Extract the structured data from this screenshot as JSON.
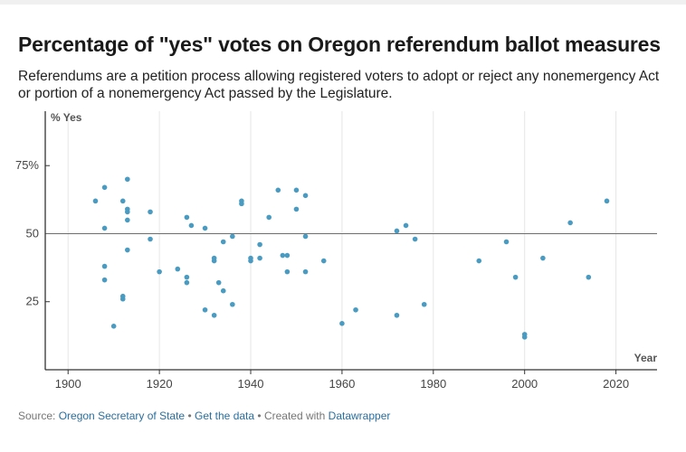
{
  "header": {
    "title": "Percentage of \"yes\" votes on Oregon referendum ballot measures",
    "subtitle": "Referendums are a petition process allowing registered voters to adopt or reject any nonemergency Act or portion of a nonemergency Act passed by the Legislature."
  },
  "footer": {
    "source_label": "Source:",
    "source_link": "Oregon Secretary of State",
    "sep1": "•",
    "data_link": "Get the data",
    "sep2": "•",
    "created_label": "Created with",
    "created_link": "Datawrapper"
  },
  "colors": {
    "dot": "#4a9bc1",
    "grid": "#e6e6e6",
    "axis": "#333333",
    "refline": "#6e6e6e"
  },
  "chart_data": {
    "type": "scatter",
    "title": "Percentage of \"yes\" votes on Oregon referendum ballot measures",
    "ylabel": "% Yes",
    "xlabel": "Year",
    "xlim": [
      1895,
      2029
    ],
    "ylim": [
      0,
      95
    ],
    "x_ticks": [
      1900,
      1920,
      1940,
      1960,
      1980,
      2000,
      2020
    ],
    "y_ticks": [
      25,
      50,
      75
    ],
    "y_tick_labels": [
      "25",
      "50",
      "75%"
    ],
    "reference_line": 50,
    "grid": "vertical",
    "points": [
      {
        "x": 1906,
        "y": 62
      },
      {
        "x": 1908,
        "y": 67
      },
      {
        "x": 1908,
        "y": 52
      },
      {
        "x": 1908,
        "y": 38
      },
      {
        "x": 1908,
        "y": 33
      },
      {
        "x": 1910,
        "y": 16
      },
      {
        "x": 1912,
        "y": 62
      },
      {
        "x": 1912,
        "y": 27
      },
      {
        "x": 1912,
        "y": 26
      },
      {
        "x": 1913,
        "y": 70
      },
      {
        "x": 1913,
        "y": 59
      },
      {
        "x": 1913,
        "y": 58
      },
      {
        "x": 1913,
        "y": 55
      },
      {
        "x": 1913,
        "y": 44
      },
      {
        "x": 1918,
        "y": 58
      },
      {
        "x": 1918,
        "y": 48
      },
      {
        "x": 1920,
        "y": 36
      },
      {
        "x": 1924,
        "y": 37
      },
      {
        "x": 1926,
        "y": 56
      },
      {
        "x": 1926,
        "y": 34
      },
      {
        "x": 1926,
        "y": 32
      },
      {
        "x": 1927,
        "y": 53
      },
      {
        "x": 1930,
        "y": 52
      },
      {
        "x": 1930,
        "y": 22
      },
      {
        "x": 1932,
        "y": 41
      },
      {
        "x": 1932,
        "y": 40
      },
      {
        "x": 1932,
        "y": 20
      },
      {
        "x": 1933,
        "y": 32
      },
      {
        "x": 1934,
        "y": 47
      },
      {
        "x": 1934,
        "y": 29
      },
      {
        "x": 1936,
        "y": 49
      },
      {
        "x": 1936,
        "y": 24
      },
      {
        "x": 1938,
        "y": 62
      },
      {
        "x": 1938,
        "y": 61
      },
      {
        "x": 1940,
        "y": 41
      },
      {
        "x": 1940,
        "y": 40
      },
      {
        "x": 1942,
        "y": 46
      },
      {
        "x": 1942,
        "y": 41
      },
      {
        "x": 1944,
        "y": 56
      },
      {
        "x": 1946,
        "y": 66
      },
      {
        "x": 1947,
        "y": 42
      },
      {
        "x": 1948,
        "y": 42
      },
      {
        "x": 1948,
        "y": 36
      },
      {
        "x": 1950,
        "y": 66
      },
      {
        "x": 1950,
        "y": 59
      },
      {
        "x": 1952,
        "y": 64
      },
      {
        "x": 1952,
        "y": 49
      },
      {
        "x": 1952,
        "y": 36
      },
      {
        "x": 1956,
        "y": 40
      },
      {
        "x": 1960,
        "y": 17
      },
      {
        "x": 1963,
        "y": 22
      },
      {
        "x": 1972,
        "y": 51
      },
      {
        "x": 1972,
        "y": 20
      },
      {
        "x": 1974,
        "y": 53
      },
      {
        "x": 1976,
        "y": 48
      },
      {
        "x": 1978,
        "y": 24
      },
      {
        "x": 1990,
        "y": 40
      },
      {
        "x": 1996,
        "y": 47
      },
      {
        "x": 1998,
        "y": 34
      },
      {
        "x": 2000,
        "y": 13
      },
      {
        "x": 2000,
        "y": 12
      },
      {
        "x": 2004,
        "y": 41
      },
      {
        "x": 2010,
        "y": 54
      },
      {
        "x": 2014,
        "y": 34
      },
      {
        "x": 2018,
        "y": 62
      }
    ]
  }
}
